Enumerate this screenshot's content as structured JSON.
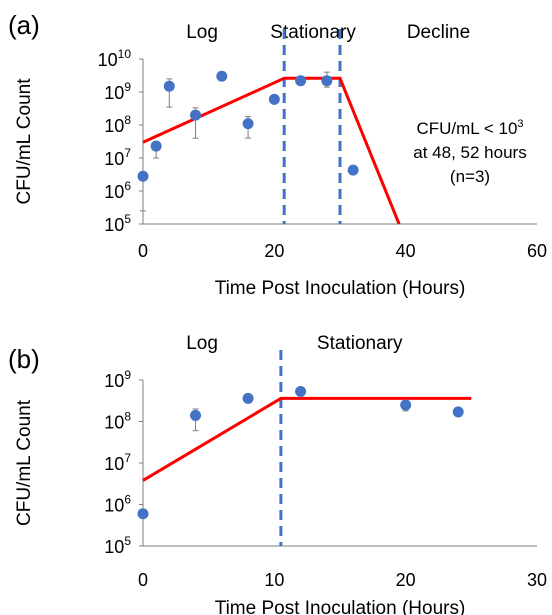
{
  "chart_data": [
    {
      "panel_label": "(a)",
      "type": "scatter",
      "y_scale": "log",
      "xlabel": "Time Post Inoculation (Hours)",
      "ylabel": "CFU/mL Count",
      "xlim": [
        0,
        60
      ],
      "ylim_exponent": [
        5,
        10
      ],
      "x_ticks": [
        "0",
        "20",
        "40",
        "60"
      ],
      "y_tick_base": "10",
      "y_tick_exponents": [
        "5",
        "6",
        "7",
        "8",
        "9",
        "10"
      ],
      "phase_labels": [
        {
          "text": "Log",
          "x": 9
        },
        {
          "text": "Stationary",
          "x": 25.9
        },
        {
          "text": "Decline",
          "x": 45
        }
      ],
      "annotation_lines": [
        {
          "parts": [
            {
              "t": "CFU/mL < 10"
            },
            {
              "t": "3",
              "sup": true
            }
          ]
        },
        {
          "parts": [
            {
              "t": "at 48, 52 hours"
            }
          ]
        },
        {
          "parts": [
            {
              "t": "(n=3)"
            }
          ]
        }
      ],
      "points": [
        {
          "x": 0,
          "y": 2800000.0,
          "err_low": 250000.0,
          "err_high": 2800000.0
        },
        {
          "x": 2,
          "y": 23000000.0,
          "err_low": 10000000.0,
          "err_high": 32000000.0
        },
        {
          "x": 4,
          "y": 1500000000.0,
          "err_low": 350000000.0,
          "err_high": 2500000000.0
        },
        {
          "x": 8,
          "y": 200000000.0,
          "err_low": 40000000.0,
          "err_high": 330000000.0
        },
        {
          "x": 12,
          "y": 3000000000.0
        },
        {
          "x": 16,
          "y": 110000000.0,
          "err_low": 40000000.0,
          "err_high": 180000000.0
        },
        {
          "x": 20,
          "y": 600000000.0
        },
        {
          "x": 24,
          "y": 2200000000.0
        },
        {
          "x": 28,
          "y": 2200000000.0,
          "err_low": 1400000000.0,
          "err_high": 4000000000.0
        },
        {
          "x": 32,
          "y": 4300000.0,
          "err_low": 3200000.0,
          "err_high": 5500000.0
        }
      ],
      "model_line": [
        [
          0,
          30000000.0
        ],
        [
          21.5,
          2600000000.0
        ],
        [
          30,
          2600000000.0
        ],
        [
          39,
          100000.0
        ]
      ],
      "phase_boundaries": [
        21.5,
        30
      ],
      "marker_color": "#4472C4",
      "line_color": "#FF0000",
      "boundary_color": "#4472C4"
    },
    {
      "panel_label": "(b)",
      "type": "scatter",
      "y_scale": "log",
      "xlabel": "Time Post Inoculation (Hours)",
      "ylabel": "CFU/mL Count",
      "xlim": [
        0,
        30
      ],
      "ylim_exponent": [
        5,
        9
      ],
      "x_ticks": [
        "0",
        "10",
        "20",
        "30"
      ],
      "y_tick_base": "10",
      "y_tick_exponents": [
        "5",
        "6",
        "7",
        "8",
        "9"
      ],
      "phase_labels": [
        {
          "text": "Log",
          "x": 4.5
        },
        {
          "text": "Stationary",
          "x": 16.5
        }
      ],
      "annotation_lines": [],
      "points": [
        {
          "x": 0,
          "y": 600000.0
        },
        {
          "x": 4,
          "y": 140000000.0,
          "err_low": 60000000.0,
          "err_high": 200000000.0
        },
        {
          "x": 8,
          "y": 360000000.0
        },
        {
          "x": 12,
          "y": 530000000.0
        },
        {
          "x": 20,
          "y": 250000000.0,
          "err_low": 180000000.0,
          "err_high": 320000000.0
        },
        {
          "x": 24,
          "y": 170000000.0
        }
      ],
      "model_line": [
        [
          0,
          3800000.0
        ],
        [
          10.5,
          360000000.0
        ],
        [
          25,
          360000000.0
        ]
      ],
      "phase_boundaries": [
        10.5
      ],
      "marker_color": "#4472C4",
      "line_color": "#FF0000",
      "boundary_color": "#4472C4"
    }
  ]
}
